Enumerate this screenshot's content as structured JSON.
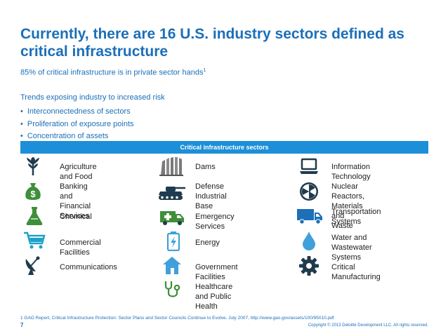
{
  "title": "Currently, there are 16 U.S. industry sectors defined as critical infrastructure",
  "subtitle": {
    "text": "85% of critical infrastructure is in private sector hands",
    "footnote_ref": "1"
  },
  "trends": {
    "heading": "Trends exposing industry to increased risk",
    "bullets": [
      "Interconnectedness of sectors",
      "Proliferation of exposure points",
      "Concentration of assets"
    ]
  },
  "sectors_header": "Critical infrastructure sectors",
  "sectors": [
    {
      "label_lines": [
        "Agriculture and Food"
      ],
      "icon": "wheat-icon"
    },
    {
      "label_lines": [
        "Dams"
      ],
      "icon": "dam-icon"
    },
    {
      "label_lines": [
        "Information Technology"
      ],
      "icon": "laptop-icon"
    },
    {
      "label_lines": [
        "Banking and Financial",
        "Services"
      ],
      "icon": "money-bag-icon"
    },
    {
      "label_lines": [
        "Defense Industrial",
        "Base"
      ],
      "icon": "tank-icon"
    },
    {
      "label_lines": [
        "Nuclear Reactors,",
        "Materials and Waste"
      ],
      "icon": "radiation-icon"
    },
    {
      "label_lines": [
        "Chemical"
      ],
      "icon": "flask-icon"
    },
    {
      "label_lines": [
        "Emergency Services"
      ],
      "icon": "ambulance-icon"
    },
    {
      "label_lines": [
        "Transportation",
        "Systems"
      ],
      "icon": "truck-icon"
    },
    {
      "label_lines": [
        "Commercial Facilities"
      ],
      "icon": "shopping-cart-icon"
    },
    {
      "label_lines": [
        "Energy"
      ],
      "icon": "battery-icon"
    },
    {
      "label_lines": [
        "Water and Wastewater",
        "Systems"
      ],
      "icon": "water-drop-icon"
    },
    {
      "label_lines": [
        "Communications"
      ],
      "icon": "satellite-dish-icon"
    },
    {
      "label_lines": [
        "Government Facilities"
      ],
      "icon": "building-icon"
    },
    {
      "label_lines": [
        "Critical Manufacturing"
      ],
      "icon": "gear-icon"
    },
    {
      "label_lines": [
        "Healthcare and Public",
        "Health"
      ],
      "icon": "stethoscope-icon"
    }
  ],
  "footnote": {
    "text": "1 GAO Report, Critical Infrastructure Protection: Sector Plans and Sector Councils Continue to Evolve. July 2007, ",
    "link": "http://www.gao.gov/assets/100/95010.pdf"
  },
  "page_number": "7",
  "copyright": "Copyright © 2013 Deloitte Development LLC. All rights reserved.",
  "colors": {
    "brand_blue": "#1b6fb8",
    "bar_blue": "#1d8fd8",
    "icon_dark": "#1f3b4d",
    "icon_green": "#3f8f3a",
    "icon_light_blue": "#3fa0dc",
    "icon_cyan": "#1da1c8"
  }
}
